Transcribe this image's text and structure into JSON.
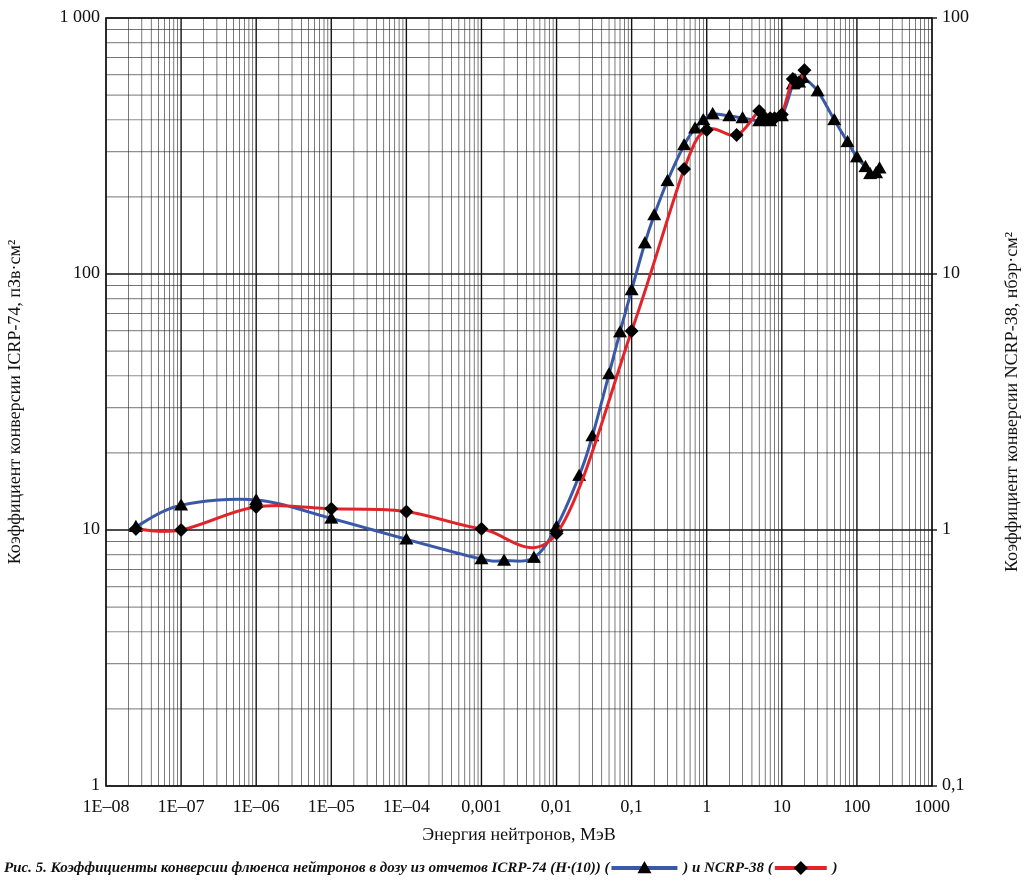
{
  "chart_data": {
    "type": "line",
    "xlabel": "Энергия нейтронов, МэВ",
    "ylabel": "Коэффициент конверсии ICRP-74, пЗв·см²",
    "y2label": "Коэффициент конверсии NCRP-38, нбэр·см²",
    "caption": "Рис. 5. Коэффициенты конверсии флюенса нейтронов в дозу из отчетов",
    "caption_joiner": "и",
    "legend_brackets": [
      "(",
      ")"
    ],
    "xscale": "log",
    "yscale": "log",
    "y2scale": "log",
    "grid": true,
    "xlim": [
      1e-08,
      1000
    ],
    "xticks": [
      {
        "value": 1e-08,
        "label": "1E–08"
      },
      {
        "value": 1e-07,
        "label": "1E–07"
      },
      {
        "value": 1e-06,
        "label": "1E–06"
      },
      {
        "value": 1e-05,
        "label": "1E–05"
      },
      {
        "value": 0.0001,
        "label": "1E–04"
      },
      {
        "value": 0.001,
        "label": "0,001"
      },
      {
        "value": 0.01,
        "label": "0,01"
      },
      {
        "value": 0.1,
        "label": "0,1"
      },
      1,
      10,
      100,
      {
        "value": 1000,
        "label": "1000"
      }
    ],
    "ylim": [
      1,
      1000
    ],
    "yticks": [
      1,
      10,
      100,
      {
        "value": 1000,
        "label": "1 000"
      }
    ],
    "y2lim": [
      0.1,
      100
    ],
    "y2ticks": [
      {
        "value": 0.1,
        "label": "0,1"
      },
      1,
      10,
      100
    ],
    "series": [
      {
        "name": "ICRP-74  (H·(10))",
        "color": "#3a58a8",
        "marker": "triangle",
        "x": [
          2.5e-08,
          1e-07,
          1e-06,
          1e-05,
          0.0001,
          0.001,
          0.002,
          0.005,
          0.01,
          0.02,
          0.03,
          0.05,
          0.07,
          0.1,
          0.15,
          0.2,
          0.3,
          0.5,
          0.7,
          0.9,
          1.2,
          2,
          3,
          5,
          7,
          10,
          14,
          15,
          17,
          19,
          30,
          50,
          75,
          100,
          130,
          150,
          180,
          200
        ],
        "values": [
          10.3,
          12.5,
          13.1,
          11.1,
          9.2,
          7.7,
          7.6,
          7.8,
          10.3,
          16.3,
          23.3,
          40.7,
          59.3,
          86.6,
          132,
          170,
          231,
          319,
          371,
          400,
          422,
          414,
          407,
          396,
          396,
          414,
          552,
          573,
          561,
          585,
          518,
          400,
          328,
          286,
          262,
          246,
          248,
          259
        ]
      },
      {
        "name": "NCRP-38",
        "color": "#e0242a",
        "marker": "diamond",
        "axis": "y2",
        "x": [
          2.5e-08,
          1e-07,
          1e-06,
          1e-05,
          0.0001,
          0.001,
          0.01,
          0.1,
          0.5,
          1,
          2.5,
          5,
          6,
          7,
          8,
          10,
          14,
          17,
          20
        ],
        "values": [
          1.01,
          1.0,
          1.23,
          1.21,
          1.18,
          1.01,
          0.97,
          5.99,
          25.7,
          36.5,
          34.9,
          43.3,
          40.6,
          40.6,
          40.6,
          42.0,
          57.8,
          56.0,
          62.6
        ]
      }
    ]
  }
}
